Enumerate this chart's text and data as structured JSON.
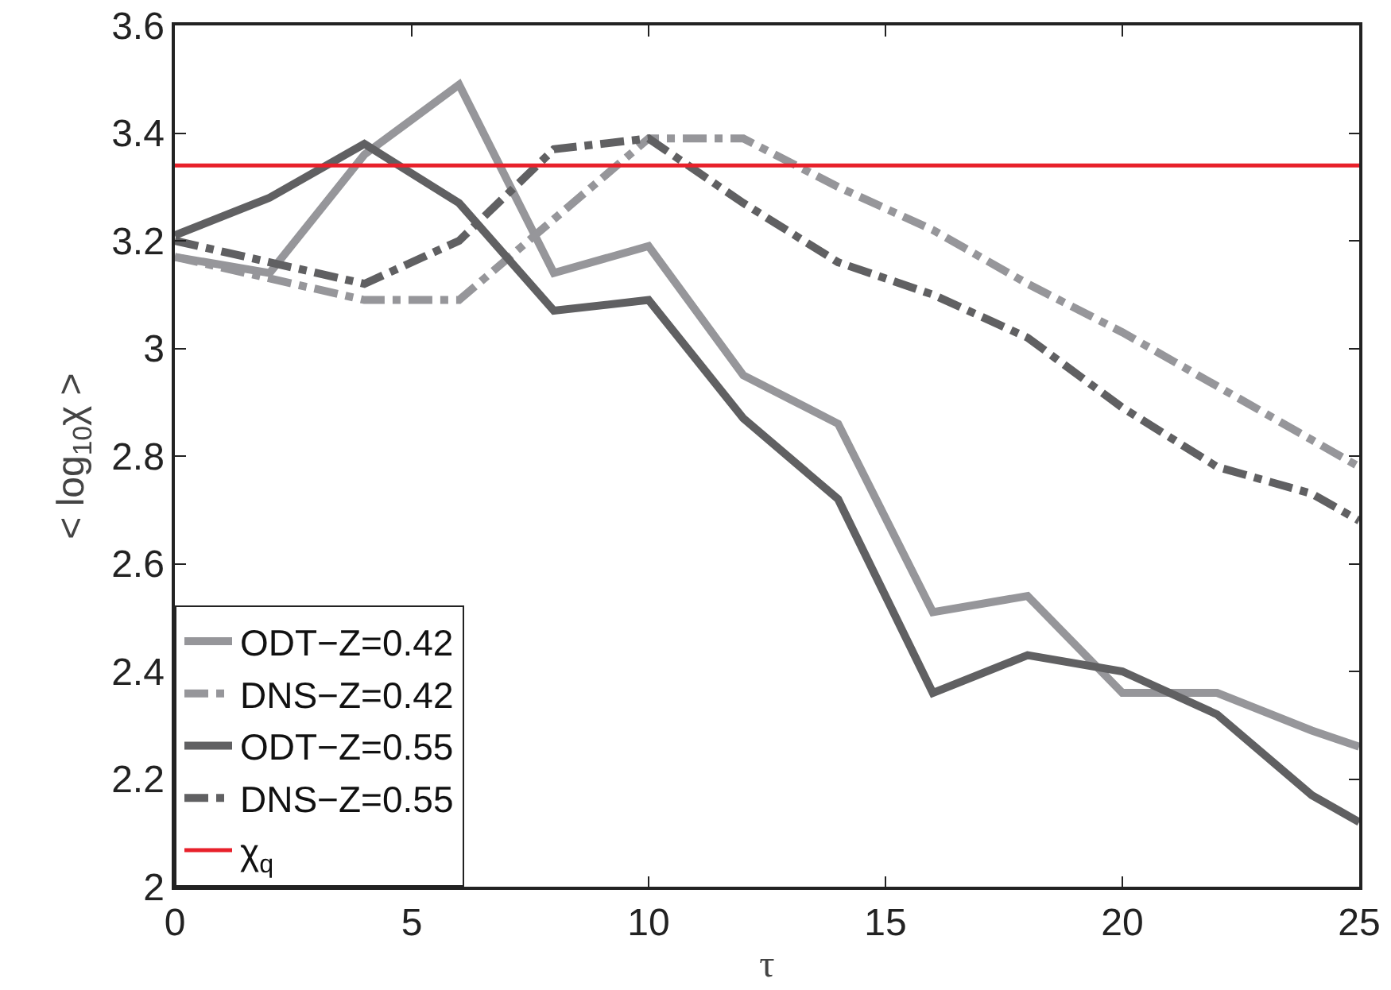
{
  "chart_data": {
    "type": "line",
    "xlabel": "τ",
    "ylabel": "< log$_{10}$χ >",
    "x": [
      0,
      2,
      4,
      6,
      8,
      10,
      12,
      14,
      16,
      18,
      20,
      22,
      24,
      25
    ],
    "series": [
      {
        "name": "ODT−Z=0.42",
        "color": "#96969a",
        "line_style": "solid",
        "values": [
          3.17,
          3.14,
          3.36,
          3.49,
          3.14,
          3.19,
          2.95,
          2.86,
          2.51,
          2.54,
          2.36,
          2.36,
          2.29,
          2.26
        ]
      },
      {
        "name": "DNS−Z=0.42",
        "color": "#96969a",
        "line_style": "dashed",
        "values": [
          3.17,
          3.13,
          3.09,
          3.09,
          3.24,
          3.39,
          3.39,
          3.3,
          3.22,
          3.12,
          3.03,
          2.93,
          2.83,
          2.78
        ]
      },
      {
        "name": "ODT−Z=0.55",
        "color": "#606062",
        "line_style": "solid",
        "values": [
          3.21,
          3.28,
          3.38,
          3.27,
          3.07,
          3.09,
          2.87,
          2.72,
          2.36,
          2.43,
          2.4,
          2.32,
          2.17,
          2.12
        ]
      },
      {
        "name": "DNS−Z=0.55",
        "color": "#606062",
        "line_style": "dashed",
        "values": [
          3.2,
          3.16,
          3.12,
          3.2,
          3.37,
          3.39,
          3.27,
          3.16,
          3.1,
          3.02,
          2.89,
          2.78,
          2.73,
          2.68
        ]
      }
    ],
    "ref_lines": [
      {
        "axis": "y",
        "value": 3.34,
        "label": "χ$_{q}$",
        "color": "#e8202a"
      }
    ],
    "xlim": [
      0,
      25
    ],
    "xticks": [
      0,
      5,
      10,
      15,
      20,
      25
    ],
    "ylim": [
      2,
      3.6
    ],
    "yticks": [
      2,
      2.2,
      2.4,
      2.6,
      2.8,
      3,
      3.2,
      3.4,
      3.6
    ],
    "grid": false,
    "legend": "bottom left",
    "marker": "none"
  }
}
